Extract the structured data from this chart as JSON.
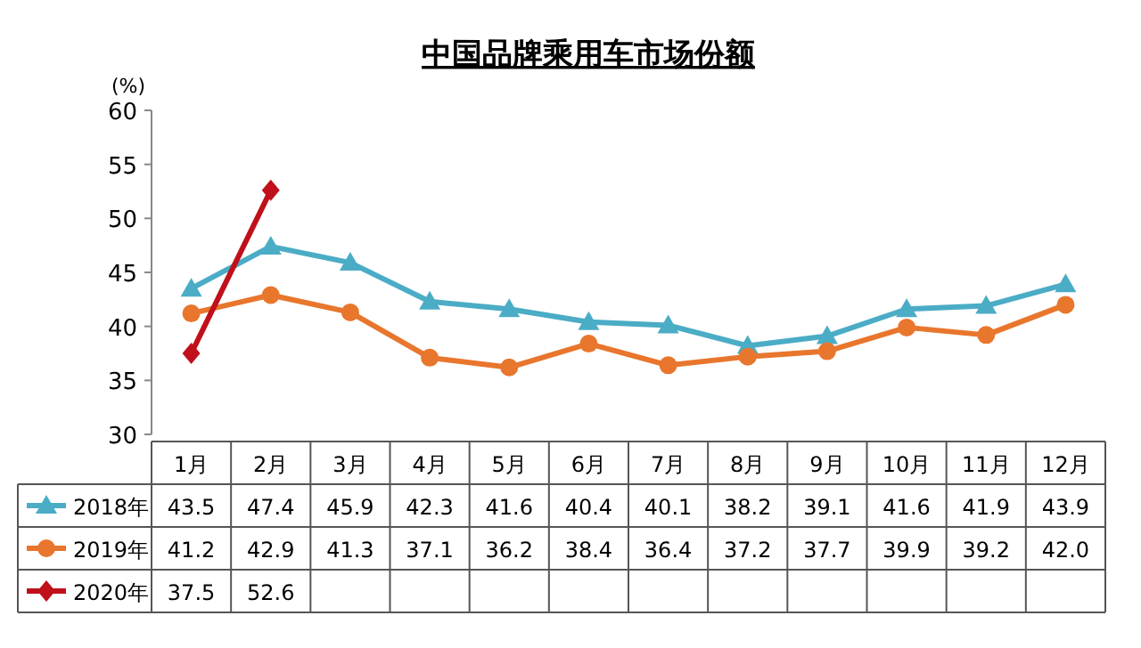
{
  "chart_data": {
    "type": "line",
    "title": "中国品牌乘用车市场份额",
    "ylabel": "(%)",
    "categories": [
      "1月",
      "2月",
      "3月",
      "4月",
      "5月",
      "6月",
      "7月",
      "8月",
      "9月",
      "10月",
      "11月",
      "12月"
    ],
    "series": [
      {
        "name": "2018年",
        "color": "#4bacc6",
        "marker": "triangle",
        "values": [
          43.5,
          47.4,
          45.9,
          42.3,
          41.6,
          40.4,
          40.1,
          38.2,
          39.1,
          41.6,
          41.9,
          43.9
        ],
        "value_labels": [
          "43.5",
          "47.4",
          "45.9",
          "42.3",
          "41.6",
          "40.4",
          "40.1",
          "38.2",
          "39.1",
          "41.6",
          "41.9",
          "43.9"
        ]
      },
      {
        "name": "2019年",
        "color": "#e8762d",
        "marker": "circle",
        "values": [
          41.2,
          42.9,
          41.3,
          37.1,
          36.2,
          38.4,
          36.4,
          37.2,
          37.7,
          39.9,
          39.2,
          42.0
        ],
        "value_labels": [
          "41.2",
          "42.9",
          "41.3",
          "37.1",
          "36.2",
          "38.4",
          "36.4",
          "37.2",
          "37.7",
          "39.9",
          "39.2",
          "42.0"
        ]
      },
      {
        "name": "2020年",
        "color": "#c0101b",
        "marker": "diamond",
        "values": [
          37.5,
          52.6,
          null,
          null,
          null,
          null,
          null,
          null,
          null,
          null,
          null,
          null
        ],
        "value_labels": [
          "37.5",
          "52.6",
          null,
          null,
          null,
          null,
          null,
          null,
          null,
          null,
          null,
          null
        ]
      }
    ],
    "ylim": [
      30,
      60
    ],
    "yticks": [
      30,
      35,
      40,
      45,
      50,
      55,
      60
    ],
    "legend": "bottom"
  }
}
